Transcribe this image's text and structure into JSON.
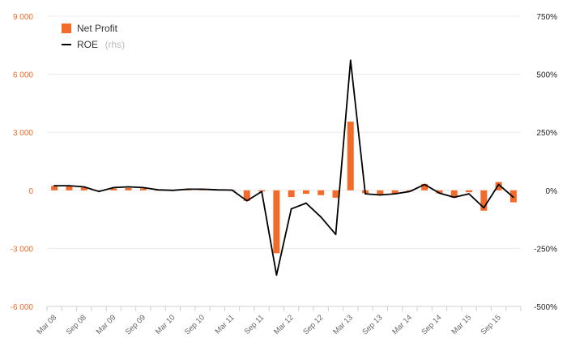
{
  "chart_data": {
    "type": "bar",
    "categories": [
      "Mar 08",
      "Jun 08",
      "Sep 08",
      "Dec 08",
      "Mar 09",
      "Jun 09",
      "Sep 09",
      "Dec 09",
      "Mar 10",
      "Jun 10",
      "Sep 10",
      "Dec 10",
      "Mar 11",
      "Jun 11",
      "Sep 11",
      "Dec 11",
      "Mar 12",
      "Jun 12",
      "Sep 12",
      "Dec 12",
      "Mar 13",
      "Jun 13",
      "Sep 13",
      "Dec 13",
      "Mar 14",
      "Jun 14",
      "Sep 14",
      "Dec 14",
      "Mar 15",
      "Jun 15",
      "Sep 15",
      "Dec 15"
    ],
    "x_tick_labels": [
      "Mar 08",
      "Sep 08",
      "Mar 09",
      "Sep 09",
      "Mar 10",
      "Sep 10",
      "Mar 11",
      "Sep 11",
      "Mar 12",
      "Sep 12",
      "Mar 13",
      "Sep 13",
      "Mar 14",
      "Sep 14",
      "Mar 15",
      "Sep 15"
    ],
    "series": [
      {
        "name": "Net Profit",
        "type": "bar",
        "axis": "left",
        "color": "#f26b2b",
        "values": [
          230,
          200,
          150,
          -50,
          100,
          120,
          100,
          20,
          10,
          50,
          40,
          20,
          10,
          -550,
          -60,
          -3250,
          -350,
          -180,
          -250,
          -380,
          3550,
          -150,
          -220,
          -180,
          -60,
          330,
          -160,
          -380,
          -100,
          -1050,
          430,
          -620
        ]
      },
      {
        "name": "ROE",
        "name_suffix": "(rhs)",
        "type": "line",
        "axis": "right",
        "color": "#000000",
        "values": [
          20,
          20,
          15,
          -5,
          12,
          15,
          12,
          2,
          0,
          5,
          5,
          2,
          1,
          -45,
          -5,
          -365,
          -80,
          -55,
          -115,
          -190,
          560,
          -15,
          -20,
          -15,
          -5,
          25,
          -12,
          -30,
          -15,
          -75,
          25,
          -30
        ]
      }
    ],
    "y_left": {
      "ticks": [
        -6000,
        -3000,
        0,
        3000,
        6000,
        9000
      ],
      "tick_labels": [
        "-6 000",
        "-3 000",
        "0",
        "3 000",
        "6 000",
        "9 000"
      ],
      "range": [
        -6000,
        9000
      ]
    },
    "y_right": {
      "ticks": [
        -500,
        -250,
        0,
        250,
        500,
        750
      ],
      "tick_labels": [
        "-500%",
        "-250%",
        "0%",
        "250%",
        "500%",
        "750%"
      ],
      "range": [
        -500,
        750
      ]
    },
    "grid": true,
    "legend_position": "top-left",
    "title": "",
    "xlabel": "",
    "ylabel": ""
  }
}
